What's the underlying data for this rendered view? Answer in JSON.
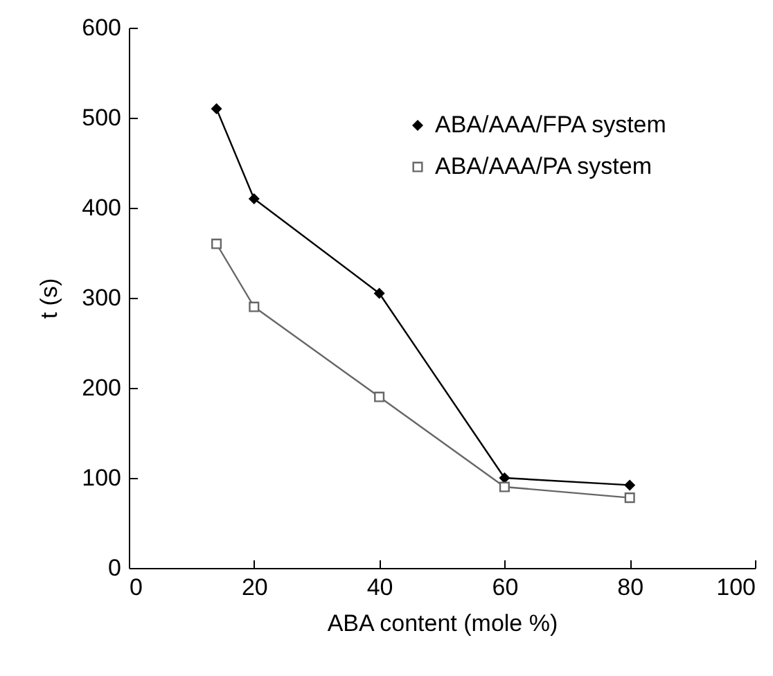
{
  "chart_data": {
    "type": "line",
    "xlabel": "ABA content (mole %)",
    "ylabel": "t (s)",
    "x": [
      14,
      20,
      40,
      60,
      80
    ],
    "series": [
      {
        "name": "ABA/AAA/FPA system",
        "color": "#000000",
        "marker": "diamond",
        "values": [
          510,
          410,
          305,
          100,
          92
        ]
      },
      {
        "name": "ABA/AAA/PA system",
        "color": "#666666",
        "marker": "square",
        "values": [
          360,
          290,
          190,
          90,
          78
        ]
      }
    ],
    "xlim": [
      0,
      100
    ],
    "xticks": [
      0,
      20,
      40,
      60,
      80,
      100
    ],
    "ylim": [
      0,
      600
    ],
    "yticks": [
      0,
      100,
      200,
      300,
      400,
      500,
      600
    ],
    "grid": false,
    "legend": "top right",
    "line_style": "solid"
  }
}
